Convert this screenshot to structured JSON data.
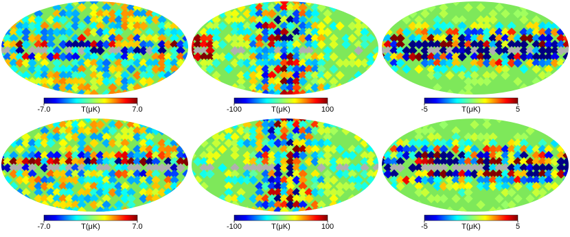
{
  "panels": [
    {
      "colorbar": {
        "label": "T(μK)",
        "lim": [
          -7,
          7
        ],
        "ticks": [
          {
            "value": -7,
            "label": "-7.0"
          },
          {
            "value": 7,
            "label": "7.0"
          }
        ]
      }
    },
    {
      "colorbar": {
        "label": "T(μK)",
        "lim": [
          -100,
          100
        ],
        "ticks": [
          -100,
          100
        ]
      }
    },
    {
      "colorbar": {
        "label": "T(μK)",
        "lim": [
          -5,
          5
        ],
        "ticks": [
          -5,
          5
        ]
      }
    },
    {
      "colorbar": {
        "label": "T(μK)",
        "lim": [
          -7,
          7
        ],
        "ticks": [
          {
            "value": -7,
            "label": "-7.0"
          },
          {
            "value": 7,
            "label": "7.0"
          }
        ]
      }
    },
    {
      "colorbar": {
        "label": "T(μK)",
        "lim": [
          -100,
          100
        ],
        "ticks": [
          -100,
          100
        ]
      }
    },
    {
      "colorbar": {
        "label": "T(μK)",
        "lim": [
          -5,
          5
        ],
        "ticks": [
          -5,
          5
        ]
      }
    }
  ]
}
